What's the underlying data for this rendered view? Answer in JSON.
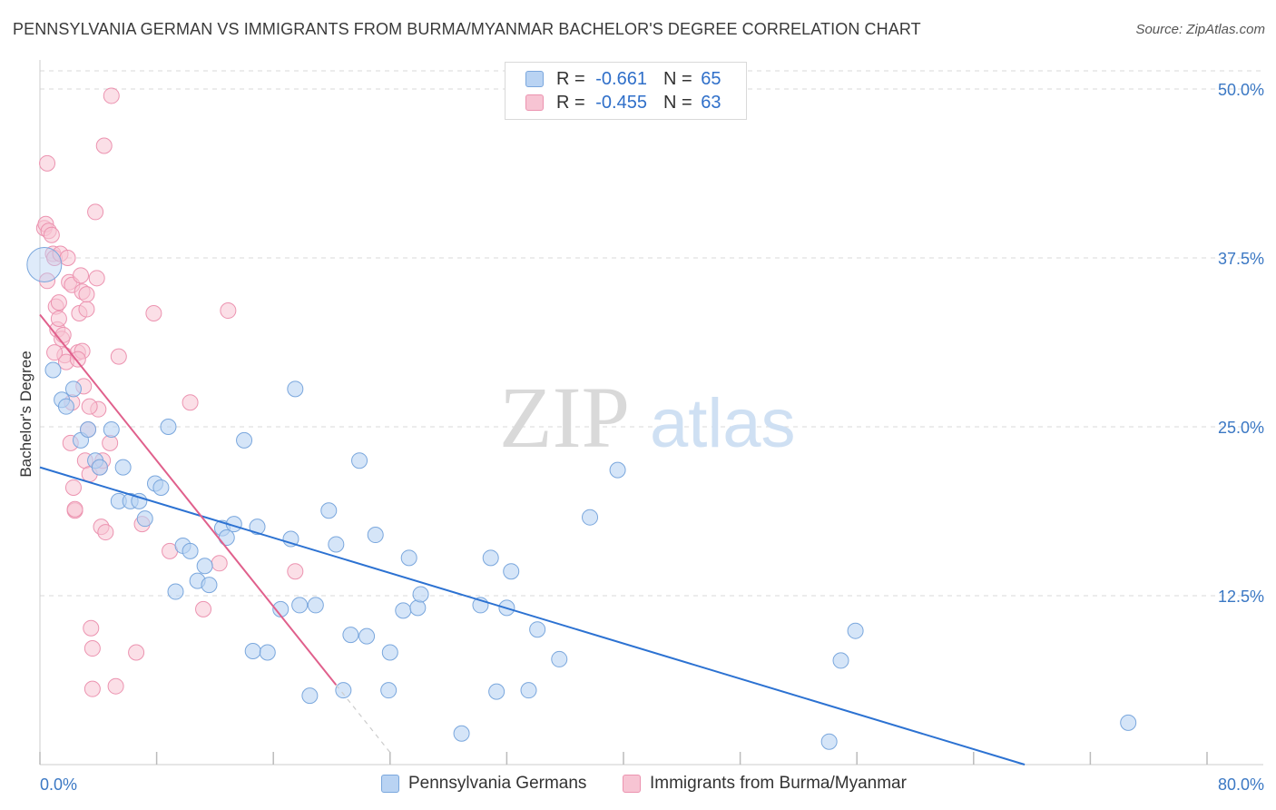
{
  "title": "PENNSYLVANIA GERMAN VS IMMIGRANTS FROM BURMA/MYANMAR BACHELOR'S DEGREE CORRELATION CHART",
  "source": "Source: ZipAtlas.com",
  "watermark": {
    "zip": "ZIP",
    "atlas": "atlas"
  },
  "colors": {
    "blue_fill": "#b9d3f3",
    "blue_stroke": "#7aa7dd",
    "blue_line": "#2c72d2",
    "pink_fill": "#f7c4d3",
    "pink_stroke": "#ec93b0",
    "pink_line": "#e0608c",
    "label_blue": "#3b78c4",
    "grid": "#d8d8d8"
  },
  "legend": {
    "rows": [
      {
        "r_label": "R =",
        "r_value": "-0.661",
        "n_label": "N =",
        "n_value": "65"
      },
      {
        "r_label": "R =",
        "r_value": "-0.455",
        "n_label": "N =",
        "n_value": "63"
      }
    ]
  },
  "bottom_legend": [
    "Pennsylvania Germans",
    "Immigrants from Burma/Myanmar"
  ],
  "chart_data": {
    "type": "scatter",
    "title": "PENNSYLVANIA GERMAN VS IMMIGRANTS FROM BURMA/MYANMAR BACHELOR'S DEGREE CORRELATION CHART",
    "xlabel": "",
    "ylabel": "Bachelor's Degree",
    "xlim": [
      0,
      80
    ],
    "ylim": [
      0,
      50
    ],
    "x_tick_labels": [
      "0.0%",
      "80.0%"
    ],
    "y_tick_labels": [
      "12.5%",
      "25.0%",
      "37.5%",
      "50.0%"
    ],
    "y_ticks": [
      12.5,
      25.0,
      37.5,
      50.0
    ],
    "grid": true,
    "legend_placement": "top-center",
    "series": [
      {
        "name": "Pennsylvania Germans",
        "color": "#b9d3f3",
        "r": -0.661,
        "n": 65,
        "trend": {
          "x": [
            0,
            67.5
          ],
          "y": [
            22.0,
            0
          ]
        },
        "points": [
          [
            0.3,
            37.0
          ],
          [
            0.9,
            29.2
          ],
          [
            1.5,
            27.0
          ],
          [
            1.8,
            26.5
          ],
          [
            2.3,
            27.8
          ],
          [
            2.8,
            24.0
          ],
          [
            3.3,
            24.8
          ],
          [
            3.8,
            22.5
          ],
          [
            4.1,
            22.0
          ],
          [
            4.9,
            24.8
          ],
          [
            5.7,
            22.0
          ],
          [
            5.4,
            19.5
          ],
          [
            6.2,
            19.5
          ],
          [
            6.8,
            19.5
          ],
          [
            7.2,
            18.2
          ],
          [
            7.9,
            20.8
          ],
          [
            8.3,
            20.5
          ],
          [
            8.8,
            25.0
          ],
          [
            9.3,
            12.8
          ],
          [
            9.8,
            16.2
          ],
          [
            10.3,
            15.8
          ],
          [
            10.8,
            13.6
          ],
          [
            11.3,
            14.7
          ],
          [
            11.6,
            13.3
          ],
          [
            12.5,
            17.5
          ],
          [
            12.8,
            16.8
          ],
          [
            13.3,
            17.8
          ],
          [
            14.0,
            24.0
          ],
          [
            14.6,
            8.4
          ],
          [
            14.9,
            17.6
          ],
          [
            15.6,
            8.3
          ],
          [
            16.5,
            11.5
          ],
          [
            17.2,
            16.7
          ],
          [
            17.5,
            27.8
          ],
          [
            17.8,
            11.8
          ],
          [
            18.5,
            5.1
          ],
          [
            18.9,
            11.8
          ],
          [
            19.8,
            18.8
          ],
          [
            20.3,
            16.3
          ],
          [
            20.8,
            5.5
          ],
          [
            21.3,
            9.6
          ],
          [
            21.9,
            22.5
          ],
          [
            22.4,
            9.5
          ],
          [
            23.0,
            17.0
          ],
          [
            23.9,
            5.5
          ],
          [
            24.0,
            8.3
          ],
          [
            24.9,
            11.4
          ],
          [
            25.3,
            15.3
          ],
          [
            25.9,
            11.6
          ],
          [
            26.1,
            12.6
          ],
          [
            28.9,
            2.3
          ],
          [
            30.2,
            11.8
          ],
          [
            30.9,
            15.3
          ],
          [
            31.3,
            5.4
          ],
          [
            32.0,
            11.6
          ],
          [
            32.3,
            14.3
          ],
          [
            33.5,
            5.5
          ],
          [
            34.1,
            10.0
          ],
          [
            35.6,
            7.8
          ],
          [
            37.7,
            18.3
          ],
          [
            39.6,
            21.8
          ],
          [
            54.9,
            7.7
          ],
          [
            55.9,
            9.9
          ],
          [
            54.1,
            1.7
          ],
          [
            74.6,
            3.1
          ]
        ]
      },
      {
        "name": "Immigrants from Burma/Myanmar",
        "color": "#f7c4d3",
        "r": -0.455,
        "n": 63,
        "trend": {
          "x": [
            0,
            20.3
          ],
          "y": [
            33.3,
            5.9
          ]
        },
        "trend_extension": {
          "x": [
            20.3,
            24.0
          ],
          "y": [
            5.9,
            0.9
          ]
        },
        "points": [
          [
            0.5,
            44.5
          ],
          [
            0.3,
            39.7
          ],
          [
            0.4,
            40.0
          ],
          [
            0.6,
            39.5
          ],
          [
            0.5,
            35.8
          ],
          [
            0.8,
            39.2
          ],
          [
            0.9,
            37.8
          ],
          [
            1.0,
            37.5
          ],
          [
            1.1,
            33.9
          ],
          [
            1.2,
            32.2
          ],
          [
            1.3,
            34.2
          ],
          [
            1.4,
            37.8
          ],
          [
            1.5,
            31.5
          ],
          [
            1.6,
            31.8
          ],
          [
            1.7,
            30.3
          ],
          [
            1.8,
            29.8
          ],
          [
            1.9,
            37.5
          ],
          [
            2.0,
            35.7
          ],
          [
            2.2,
            35.5
          ],
          [
            2.2,
            26.8
          ],
          [
            2.3,
            20.5
          ],
          [
            2.4,
            18.8
          ],
          [
            2.4,
            18.9
          ],
          [
            2.6,
            30.5
          ],
          [
            2.7,
            33.4
          ],
          [
            2.8,
            36.2
          ],
          [
            2.9,
            30.6
          ],
          [
            2.9,
            35.0
          ],
          [
            3.1,
            22.5
          ],
          [
            3.2,
            33.7
          ],
          [
            3.2,
            34.8
          ],
          [
            3.3,
            24.8
          ],
          [
            3.4,
            21.5
          ],
          [
            3.6,
            5.6
          ],
          [
            3.9,
            36.0
          ],
          [
            3.5,
            10.1
          ],
          [
            3.6,
            8.6
          ],
          [
            3.8,
            40.9
          ],
          [
            4.0,
            26.3
          ],
          [
            4.1,
            22.0
          ],
          [
            4.2,
            17.6
          ],
          [
            4.3,
            22.5
          ],
          [
            4.4,
            45.8
          ],
          [
            4.5,
            17.2
          ],
          [
            4.8,
            23.8
          ],
          [
            4.9,
            49.5
          ],
          [
            5.2,
            5.8
          ],
          [
            5.4,
            30.2
          ],
          [
            6.6,
            8.3
          ],
          [
            7.0,
            17.8
          ],
          [
            7.8,
            33.4
          ],
          [
            8.9,
            15.8
          ],
          [
            10.3,
            26.8
          ],
          [
            11.2,
            11.5
          ],
          [
            12.3,
            14.9
          ],
          [
            12.9,
            33.6
          ],
          [
            17.5,
            14.3
          ],
          [
            3.0,
            28.0
          ],
          [
            2.1,
            23.8
          ],
          [
            1.3,
            33.0
          ],
          [
            2.6,
            30.0
          ],
          [
            3.4,
            26.5
          ],
          [
            1.0,
            30.5
          ]
        ]
      }
    ]
  }
}
